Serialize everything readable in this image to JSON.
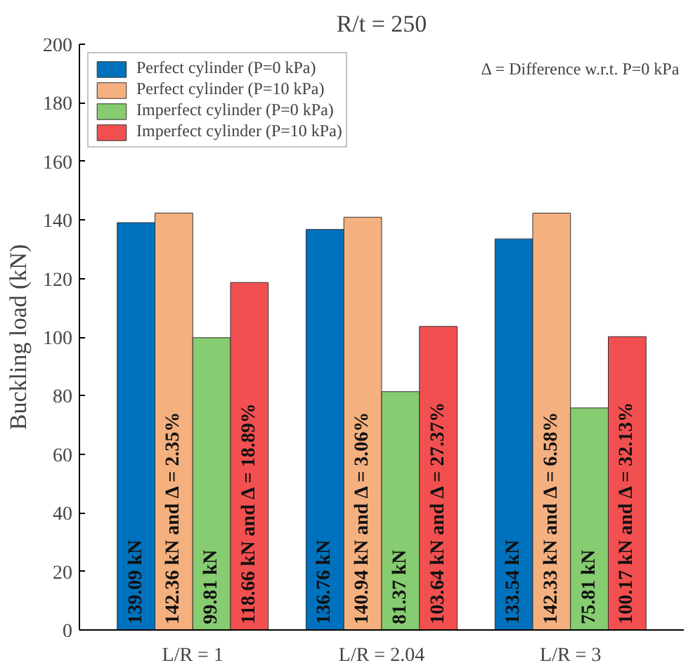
{
  "chart_data": {
    "type": "bar",
    "title": "R/t = 250",
    "ylabel": "Buckling load (kN)",
    "categories": [
      "L/R = 1",
      "L/R = 2.04",
      "L/R = 3"
    ],
    "series": [
      {
        "name": "Perfect cylinder (P=0 kPa)",
        "color": "#0072bd",
        "values": [
          139.09,
          136.76,
          133.54
        ],
        "value_labels": [
          "139.09 kN",
          "136.76 kN",
          "133.54 kN"
        ]
      },
      {
        "name": "Perfect cylinder (P=10 kPa)",
        "color": "#f5b07f",
        "values": [
          142.36,
          140.94,
          142.33
        ],
        "value_labels": [
          "142.36 kN and Δ = 2.35%",
          "140.94 kN and Δ = 3.06%",
          "142.33 kN and Δ = 6.58%"
        ]
      },
      {
        "name": "Imperfect cylinder (P=0 kPa)",
        "color": "#86cc70",
        "values": [
          99.81,
          81.37,
          75.81
        ],
        "value_labels": [
          "99.81 kN",
          "81.37 kN",
          "75.81 kN"
        ]
      },
      {
        "name": "Imperfect cylinder (P=10 kPa)",
        "color": "#f25050",
        "values": [
          118.66,
          103.64,
          100.17
        ],
        "value_labels": [
          "118.66 kN and Δ = 18.89%",
          "103.64 kN and Δ = 27.37%",
          "100.17 kN and Δ = 32.13%"
        ]
      }
    ],
    "ylim": [
      0,
      200
    ],
    "yticks": [
      0,
      20,
      40,
      60,
      80,
      100,
      120,
      140,
      160,
      180,
      200
    ],
    "annotations": [
      "Δ = Difference w.r.t. P=0 kPa"
    ],
    "legend": "top left",
    "grid": false
  }
}
